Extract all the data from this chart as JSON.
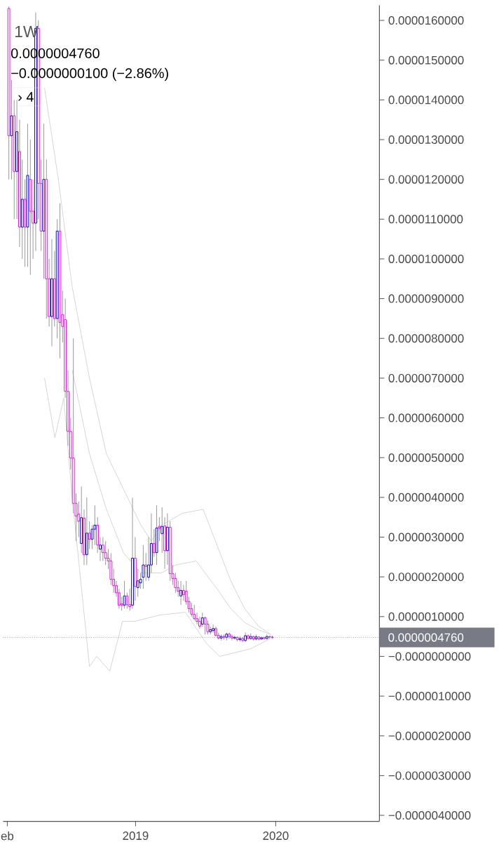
{
  "chart_data": {
    "type": "candlestick",
    "x": [
      "2018-02-05",
      "2018-02-12",
      "2018-02-19",
      "2018-02-26",
      "2018-03-05",
      "2018-03-12",
      "2018-03-19",
      "2018-03-26",
      "2018-04-02",
      "2018-04-09",
      "2018-04-16",
      "2018-04-23",
      "2018-04-30",
      "2018-05-07",
      "2018-05-14",
      "2018-05-21",
      "2018-05-28",
      "2018-06-04",
      "2018-06-11",
      "2018-06-18",
      "2018-06-25",
      "2018-07-02",
      "2018-07-09",
      "2018-07-16",
      "2018-07-23",
      "2018-07-30",
      "2018-08-06",
      "2018-08-13",
      "2018-08-20",
      "2018-08-27",
      "2018-09-03",
      "2018-09-10",
      "2018-09-17",
      "2018-09-24",
      "2018-10-01",
      "2018-10-08",
      "2018-10-15",
      "2018-10-22",
      "2018-10-29",
      "2018-11-05",
      "2018-11-12",
      "2018-11-19",
      "2018-11-26",
      "2018-12-03",
      "2018-12-10",
      "2018-12-17",
      "2018-12-24",
      "2018-12-31",
      "2019-01-07",
      "2019-01-14",
      "2019-01-21",
      "2019-01-28",
      "2019-02-04",
      "2019-02-11",
      "2019-02-18",
      "2019-02-25",
      "2019-03-04",
      "2019-03-11",
      "2019-03-18",
      "2019-03-25",
      "2019-04-01",
      "2019-04-08",
      "2019-04-15",
      "2019-04-22",
      "2019-04-29",
      "2019-05-06",
      "2019-05-13",
      "2019-05-20",
      "2019-05-27",
      "2019-06-03",
      "2019-06-10",
      "2019-06-17",
      "2019-06-24",
      "2019-07-01",
      "2019-07-08",
      "2019-07-15",
      "2019-07-22",
      "2019-07-29",
      "2019-08-05",
      "2019-08-12",
      "2019-08-19",
      "2019-08-26",
      "2019-09-02",
      "2019-09-09",
      "2019-09-16",
      "2019-09-23",
      "2019-09-30",
      "2019-10-07",
      "2019-10-14",
      "2019-10-21",
      "2019-10-28",
      "2019-11-04",
      "2019-11-11",
      "2019-11-18",
      "2019-11-25",
      "2019-12-02",
      "2019-12-09",
      "2019-12-16",
      "2019-12-23"
    ],
    "ohlc": [
      [
        1.63e-05,
        1.635e-05,
        1.2e-05,
        1.31e-05
      ],
      [
        1.31e-05,
        1.45e-05,
        1.2e-05,
        1.36e-05
      ],
      [
        1.36e-05,
        1.4e-05,
        1.1e-05,
        1.22e-05
      ],
      [
        1.22e-05,
        1.4e-05,
        1.1e-05,
        1.32e-05
      ],
      [
        1.27e-05,
        1.35e-05,
        1.03e-05,
        1.08e-05
      ],
      [
        1.08e-05,
        1.25e-05,
        1e-05,
        1.15e-05
      ],
      [
        1.15e-05,
        1.2e-05,
        9.8e-06,
        1.08e-05
      ],
      [
        1.08e-05,
        1.34e-05,
        9.8e-06,
        1.21e-05
      ],
      [
        1.2e-05,
        1.3e-05,
        9.6e-06,
        1.12e-05
      ],
      [
        1.12e-05,
        1.2e-05,
        1e-05,
        1.09e-05
      ],
      [
        1.09e-05,
        1.62e-05,
        1.02e-05,
        1.58e-05
      ],
      [
        1.58e-05,
        1.6e-05,
        1.1e-05,
        1.19e-05
      ],
      [
        1.19e-05,
        1.25e-05,
        1.02e-05,
        1.07e-05
      ],
      [
        1.07e-05,
        1.34e-05,
        9.5e-06,
        1.2e-05
      ],
      [
        1.2e-05,
        1.25e-05,
        8.5e-06,
        9.5e-06
      ],
      [
        9.5e-06,
        1e-05,
        8.3e-06,
        8.55e-06
      ],
      [
        8.55e-06,
        1.05e-05,
        7.8e-06,
        9.5e-06
      ],
      [
        9.5e-06,
        1.02e-05,
        8.3e-06,
        8.5e-06
      ],
      [
        8.5e-06,
        1.1e-05,
        8e-06,
        1.07e-05
      ],
      [
        1.07e-05,
        1.14e-05,
        7.5e-06,
        8.4e-06
      ],
      [
        8.6e-06,
        9.2e-06,
        7.9e-06,
        8.3e-06
      ],
      [
        8.47e-06,
        9e-06,
        6.5e-06,
        6.67e-06
      ],
      [
        6.67e-06,
        7.2e-06,
        5.3e-06,
        5.66e-06
      ],
      [
        5.66e-06,
        6e-06,
        4.7e-06,
        4.99e-06
      ],
      [
        4.99e-06,
        8e-06,
        3.6e-06,
        3.85e-06
      ],
      [
        3.85e-06,
        4.1e-06,
        2.9e-06,
        3.53e-06
      ],
      [
        3.58e-06,
        3.9e-06,
        3e-06,
        3.4e-06
      ],
      [
        2.84e-06,
        4.27e-06,
        2.6e-06,
        3.49e-06
      ],
      [
        3.48e-06,
        3.7e-06,
        2.3e-06,
        2.56e-06
      ],
      [
        2.56e-06,
        4e-06,
        2.3e-06,
        3.1e-06
      ],
      [
        3.1e-06,
        3.4e-06,
        2.7e-06,
        2.95e-06
      ],
      [
        2.95e-06,
        3.3e-06,
        2.7e-06,
        3.2e-06
      ],
      [
        3.2e-06,
        3.8e-06,
        2.8e-06,
        3.3e-06
      ],
      [
        3.3e-06,
        3.5e-06,
        2.6e-06,
        2.8e-06
      ],
      [
        2.7e-06,
        3e-06,
        2.4e-06,
        2.8e-06
      ],
      [
        2.8e-06,
        3e-06,
        2.4e-06,
        2.61e-06
      ],
      [
        2.61e-06,
        2.9e-06,
        2.3e-06,
        2.47e-06
      ],
      [
        2.47e-06,
        2.7e-06,
        2.2e-06,
        2.4e-06
      ],
      [
        2.4e-06,
        2.6e-06,
        1.8e-06,
        1.94e-06
      ],
      [
        1.94e-06,
        2.2e-06,
        1.6e-06,
        1.78e-06
      ],
      [
        1.78e-06,
        1.9e-06,
        1.5e-06,
        1.6e-06
      ],
      [
        1.6e-06,
        1.7e-06,
        1.2e-06,
        1.29e-06
      ],
      [
        1.32e-06,
        1.5e-06,
        1.15e-06,
        1.29e-06
      ],
      [
        1.29e-06,
        1.9e-06,
        1.2e-06,
        1.52e-06
      ],
      [
        1.52e-06,
        1.6e-06,
        1.2e-06,
        1.3e-06
      ],
      [
        1.3e-06,
        1.7e-06,
        1.15e-06,
        1.25e-06
      ],
      [
        1.29e-06,
        3.99e-06,
        1.2e-06,
        2.47e-06
      ],
      [
        2.47e-06,
        3e-06,
        1.4e-06,
        1.76e-06
      ],
      [
        1.73e-06,
        2.2e-06,
        1.5e-06,
        1.9e-06
      ],
      [
        1.85e-06,
        2.1e-06,
        1.7e-06,
        1.94e-06
      ],
      [
        1.99e-06,
        2.8e-06,
        1.7e-06,
        2.3e-06
      ],
      [
        2.3e-06,
        2.6e-06,
        1.9e-06,
        2.26e-06
      ],
      [
        1.99e-06,
        3e-06,
        1.9e-06,
        2.3e-06
      ],
      [
        2.3e-06,
        3.6e-06,
        2.1e-06,
        2.84e-06
      ],
      [
        2.84e-06,
        3.2e-06,
        2.5e-06,
        2.61e-06
      ],
      [
        2.61e-06,
        3.8e-06,
        2.3e-06,
        3.23e-06
      ],
      [
        3.27e-06,
        3.5e-06,
        2.9e-06,
        3.23e-06
      ],
      [
        3.09e-06,
        3.75e-06,
        2.6e-06,
        3.27e-06
      ],
      [
        3.28e-06,
        3.5e-06,
        2.2e-06,
        2.66e-06
      ],
      [
        2.66e-06,
        3.6e-06,
        2.3e-06,
        3.25e-06
      ],
      [
        3.25e-06,
        3.4e-06,
        1.9e-06,
        2.08e-06
      ],
      [
        2.08e-06,
        2.3e-06,
        1.8e-06,
        1.96e-06
      ],
      [
        1.96e-06,
        2.1e-06,
        1.6e-06,
        1.73e-06
      ],
      [
        1.73e-06,
        1.9e-06,
        1.5e-06,
        1.64e-06
      ],
      [
        1.52e-06,
        1.9e-06,
        1.3e-06,
        1.66e-06
      ],
      [
        1.66e-06,
        1.8e-06,
        1.4e-06,
        1.55e-06
      ],
      [
        1.64e-06,
        1.9e-06,
        1.3e-06,
        1.38e-06
      ],
      [
        1.38e-06,
        1.5e-06,
        1.1e-06,
        1.2e-06
      ],
      [
        1.2e-06,
        1.35e-06,
        1e-06,
        1.06e-06
      ],
      [
        1.06e-06,
        1.3e-06,
        9e-07,
        9.5e-07
      ],
      [
        9.5e-07,
        1.1e-06,
        8e-07,
        8.8e-07
      ],
      [
        8.8e-07,
        1e-06,
        7e-07,
        7.6e-07
      ],
      [
        8.1e-07,
        1.1e-06,
        7.5e-07,
        9.7e-07
      ],
      [
        9.7e-07,
        1e-06,
        5.5e-07,
        8.1e-07
      ],
      [
        8.1e-07,
        9e-07,
        5.5e-07,
        6.2e-07
      ],
      [
        6.2e-07,
        7.5e-07,
        5.5e-07,
        6.7e-07
      ],
      [
        6.5e-07,
        8e-07,
        6e-07,
        7e-07
      ],
      [
        7e-07,
        7.5e-07,
        5e-07,
        5.3e-07
      ],
      [
        5.3e-07,
        6e-07,
        4.2e-07,
        4.6e-07
      ],
      [
        4.6e-07,
        5.5e-07,
        4e-07,
        5e-07
      ],
      [
        5e-07,
        5.5e-07,
        4.2e-07,
        4.8e-07
      ],
      [
        4.8e-07,
        6e-07,
        4e-07,
        5.6e-07
      ],
      [
        5.6e-07,
        6e-07,
        4.4e-07,
        5e-07
      ],
      [
        5e-07,
        5.5e-07,
        4e-07,
        4.6e-07
      ],
      [
        4.6e-07,
        5.2e-07,
        4.2e-07,
        4.8e-07
      ],
      [
        4.8e-07,
        5e-07,
        3.8e-07,
        4.2e-07
      ],
      [
        4.2e-07,
        5e-07,
        3.8e-07,
        4.5e-07
      ],
      [
        4.5e-07,
        4.8e-07,
        3.6e-07,
        4e-07
      ],
      [
        4e-07,
        6e-07,
        3.6e-07,
        5.2e-07
      ],
      [
        5.2e-07,
        5.5e-07,
        4.2e-07,
        4.5e-07
      ],
      [
        4.5e-07,
        5.8e-07,
        4.2e-07,
        5e-07
      ],
      [
        5e-07,
        5.2e-07,
        4e-07,
        4.4e-07
      ],
      [
        4.4e-07,
        5.5e-07,
        4e-07,
        4.9e-07
      ],
      [
        4.9e-07,
        5e-07,
        4e-07,
        4.4e-07
      ],
      [
        4.4e-07,
        5e-07,
        4.2e-07,
        4.7e-07
      ],
      [
        4.7e-07,
        5e-07,
        4.2e-07,
        4.5e-07
      ],
      [
        4.5e-07,
        5.5e-07,
        4.2e-07,
        5e-07
      ],
      [
        5e-07,
        5.2e-07,
        4.4e-07,
        4.86e-07
      ],
      [
        4.86e-07,
        5.2e-07,
        4.4e-07,
        4.76e-07
      ]
    ],
    "colors": [
      "#ff00ff",
      "#0000ff",
      "#ff00ff",
      "#0000ff",
      "#ff00ff",
      "#0000ff",
      "#ff00ff",
      "#0000ff",
      "#ff00ff",
      "#ff00ff",
      "#0000ff",
      "#ff00ff",
      "#ff00ff",
      "#0000ff",
      "#ff00ff",
      "#ff00ff",
      "#0000ff",
      "#ff00ff",
      "#0000ff",
      "#ff00ff",
      "#ff00ff",
      "#ff00ff",
      "#ff00ff",
      "#ff00ff",
      "#ff00ff",
      "#ff00ff",
      "#ff00ff",
      "#0000ff",
      "#ff00ff",
      "#0000ff",
      "#ff00ff",
      "#0000ff",
      "#0000ff",
      "#ff00ff",
      "#0000ff",
      "#ff00ff",
      "#ff00ff",
      "#ff00ff",
      "#ff00ff",
      "#ff00ff",
      "#ff00ff",
      "#ff00ff",
      "#ff00ff",
      "#0000ff",
      "#ff00ff",
      "#ff00ff",
      "#0000ff",
      "#ff00ff",
      "#0000ff",
      "#0000ff",
      "#0000ff",
      "#ff00ff",
      "#0000ff",
      "#0000ff",
      "#ff00ff",
      "#0000ff",
      "#ff00ff",
      "#0000ff",
      "#ff00ff",
      "#0000ff",
      "#ff00ff",
      "#ff00ff",
      "#ff00ff",
      "#ff00ff",
      "#0000ff",
      "#ff00ff",
      "#ff00ff",
      "#ff00ff",
      "#ff00ff",
      "#ff00ff",
      "#ff00ff",
      "#ff00ff",
      "#0000ff",
      "#ff00ff",
      "#ff00ff",
      "#0000ff",
      "#0000ff",
      "#ff00ff",
      "#ff00ff",
      "#0000ff",
      "#ff00ff",
      "#0000ff",
      "#ff00ff",
      "#ff00ff",
      "#0000ff",
      "#ff00ff",
      "#0000ff",
      "#ff00ff",
      "#0000ff",
      "#ff00ff",
      "#0000ff",
      "#ff00ff",
      "#0000ff",
      "#ff00ff",
      "#0000ff",
      "#ff00ff",
      "#0000ff",
      "#ff00ff",
      "#ff00ff"
    ],
    "series": [
      {
        "type": "line",
        "color": "#cccccc",
        "x": [
          "2018-05-09",
          "2018-06-14",
          "2018-07-20",
          "2018-09-03",
          "2018-10-17",
          "2018-12-01",
          "2019-01-15",
          "2019-02-11",
          "2019-03-10",
          "2019-05-03",
          "2019-06-26",
          "2019-08-01",
          "2019-09-06",
          "2019-10-12",
          "2019-11-17",
          "2019-12-19"
        ],
        "values": [
          1.43e-05,
          1.2e-05,
          9.3e-06,
          7e-06,
          5.1e-06,
          4.2e-06,
          3.3e-06,
          2.9e-06,
          3.3e-06,
          3.6e-06,
          3.7e-06,
          2.8e-06,
          1.9e-06,
          1.2e-06,
          7.6e-07,
          5.5e-07
        ]
      },
      {
        "type": "line",
        "color": "#cccccc",
        "x": [
          "2018-07-20",
          "2018-09-03",
          "2018-10-17",
          "2018-12-01",
          "2019-01-15",
          "2019-03-10",
          "2019-04-15",
          "2019-06-08",
          "2019-08-01",
          "2019-09-06",
          "2019-10-12",
          "2019-11-17",
          "2019-12-19"
        ],
        "values": [
          7.2e-06,
          5.1e-06,
          3.7e-06,
          2.6e-06,
          2.1e-06,
          2.1e-06,
          2.3e-06,
          2.4e-06,
          1.7e-06,
          1.2e-06,
          8.5e-07,
          6.7e-07,
          5.5e-07
        ]
      },
      {
        "type": "line",
        "color": "#cccccc",
        "x": [
          "2018-05-09",
          "2018-06-05",
          "2018-06-28",
          "2018-07-20",
          "2018-09-03",
          "2018-09-22",
          "2018-10-26",
          "2018-11-28",
          "2018-12-30",
          "2019-03-05",
          "2019-05-11",
          "2019-07-05",
          "2019-08-08",
          "2019-10-28",
          "2019-12-16"
        ],
        "values": [
          7e-06,
          5.5e-06,
          6.5e-06,
          4e-06,
          -2.5e-07,
          0.0,
          -3.7e-07,
          8.8e-07,
          8.8e-07,
          1.04e-06,
          1.11e-06,
          3.2e-07,
          0.0,
          1.9e-07,
          4.4e-07
        ]
      }
    ],
    "xlim": [
      "2018-01-21",
      "2020-09-27"
    ],
    "xticks": [
      {
        "value": "2018-02-01",
        "label": "eb"
      },
      {
        "value": "2019-01-01",
        "label": "2019"
      },
      {
        "value": "2020-01-01",
        "label": "2020"
      }
    ],
    "ylim": [
      -4.15e-06,
      1.638e-05
    ],
    "yticks": [
      {
        "value": -4e-06,
        "label": "−0.0000040000"
      },
      {
        "value": -3e-06,
        "label": "−0.0000030000"
      },
      {
        "value": -2e-06,
        "label": "−0.0000020000"
      },
      {
        "value": -1e-06,
        "label": "−0.0000010000"
      },
      {
        "value": 0,
        "label": "−0.0000000000"
      },
      {
        "value": 1e-06,
        "label": "0.0000010000"
      },
      {
        "value": 2e-06,
        "label": "0.0000020000"
      },
      {
        "value": 3e-06,
        "label": "0.0000030000"
      },
      {
        "value": 4e-06,
        "label": "0.0000040000"
      },
      {
        "value": 5e-06,
        "label": "0.0000050000"
      },
      {
        "value": 6e-06,
        "label": "0.0000060000"
      },
      {
        "value": 7e-06,
        "label": "0.0000070000"
      },
      {
        "value": 8e-06,
        "label": "0.0000080000"
      },
      {
        "value": 9e-06,
        "label": "0.0000090000"
      },
      {
        "value": 1e-05,
        "label": "0.0000100000"
      },
      {
        "value": 1.1e-05,
        "label": "0.0000110000"
      },
      {
        "value": 1.2e-05,
        "label": "0.0000120000"
      },
      {
        "value": 1.3e-05,
        "label": "0.0000130000"
      },
      {
        "value": 1.4e-05,
        "label": "0.0000140000"
      },
      {
        "value": 1.5e-05,
        "label": "0.0000150000"
      },
      {
        "value": 1.6e-05,
        "label": "0.0000160000"
      }
    ],
    "ref_lines": [
      {
        "axis": "y",
        "value": 4.76e-07,
        "label": "0.0000004760",
        "color": "#787b86",
        "line_style": "dotted"
      }
    ],
    "annotations": [
      "1W",
      "0.0000004760",
      "−0.0000000100 (−2.86%)",
      "› 4"
    ]
  }
}
